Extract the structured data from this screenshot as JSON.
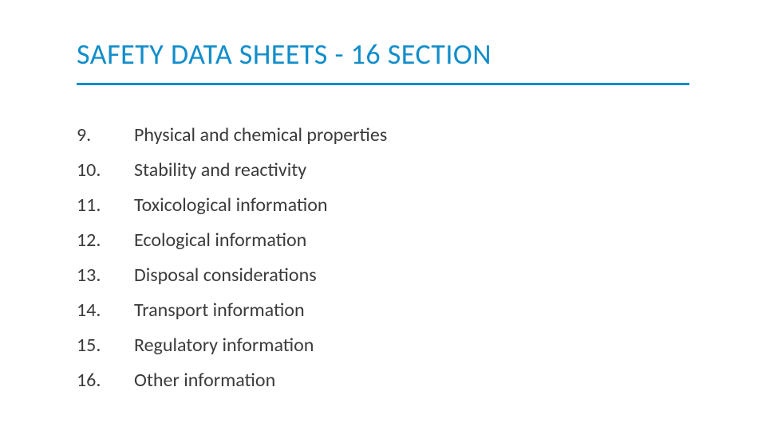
{
  "colors": {
    "title": "#118dca",
    "underline": "#118dca",
    "text": "#3b3b3b",
    "background": "#ffffff"
  },
  "typography": {
    "title_fontsize": 36,
    "body_fontsize": 24,
    "font_family": "Segoe UI"
  },
  "title": "SAFETY DATA SHEETS  - 16 SECTION",
  "items": [
    {
      "num": "9.",
      "label": "Physical and chemical properties"
    },
    {
      "num": "10.",
      "label": "Stability and reactivity"
    },
    {
      "num": "11.",
      "label": "Toxicological information"
    },
    {
      "num": "12.",
      "label": "Ecological information"
    },
    {
      "num": "13.",
      "label": "Disposal considerations"
    },
    {
      "num": "14.",
      "label": "Transport information"
    },
    {
      "num": "15.",
      "label": "Regulatory information"
    },
    {
      "num": "16.",
      "label": "Other information"
    }
  ]
}
